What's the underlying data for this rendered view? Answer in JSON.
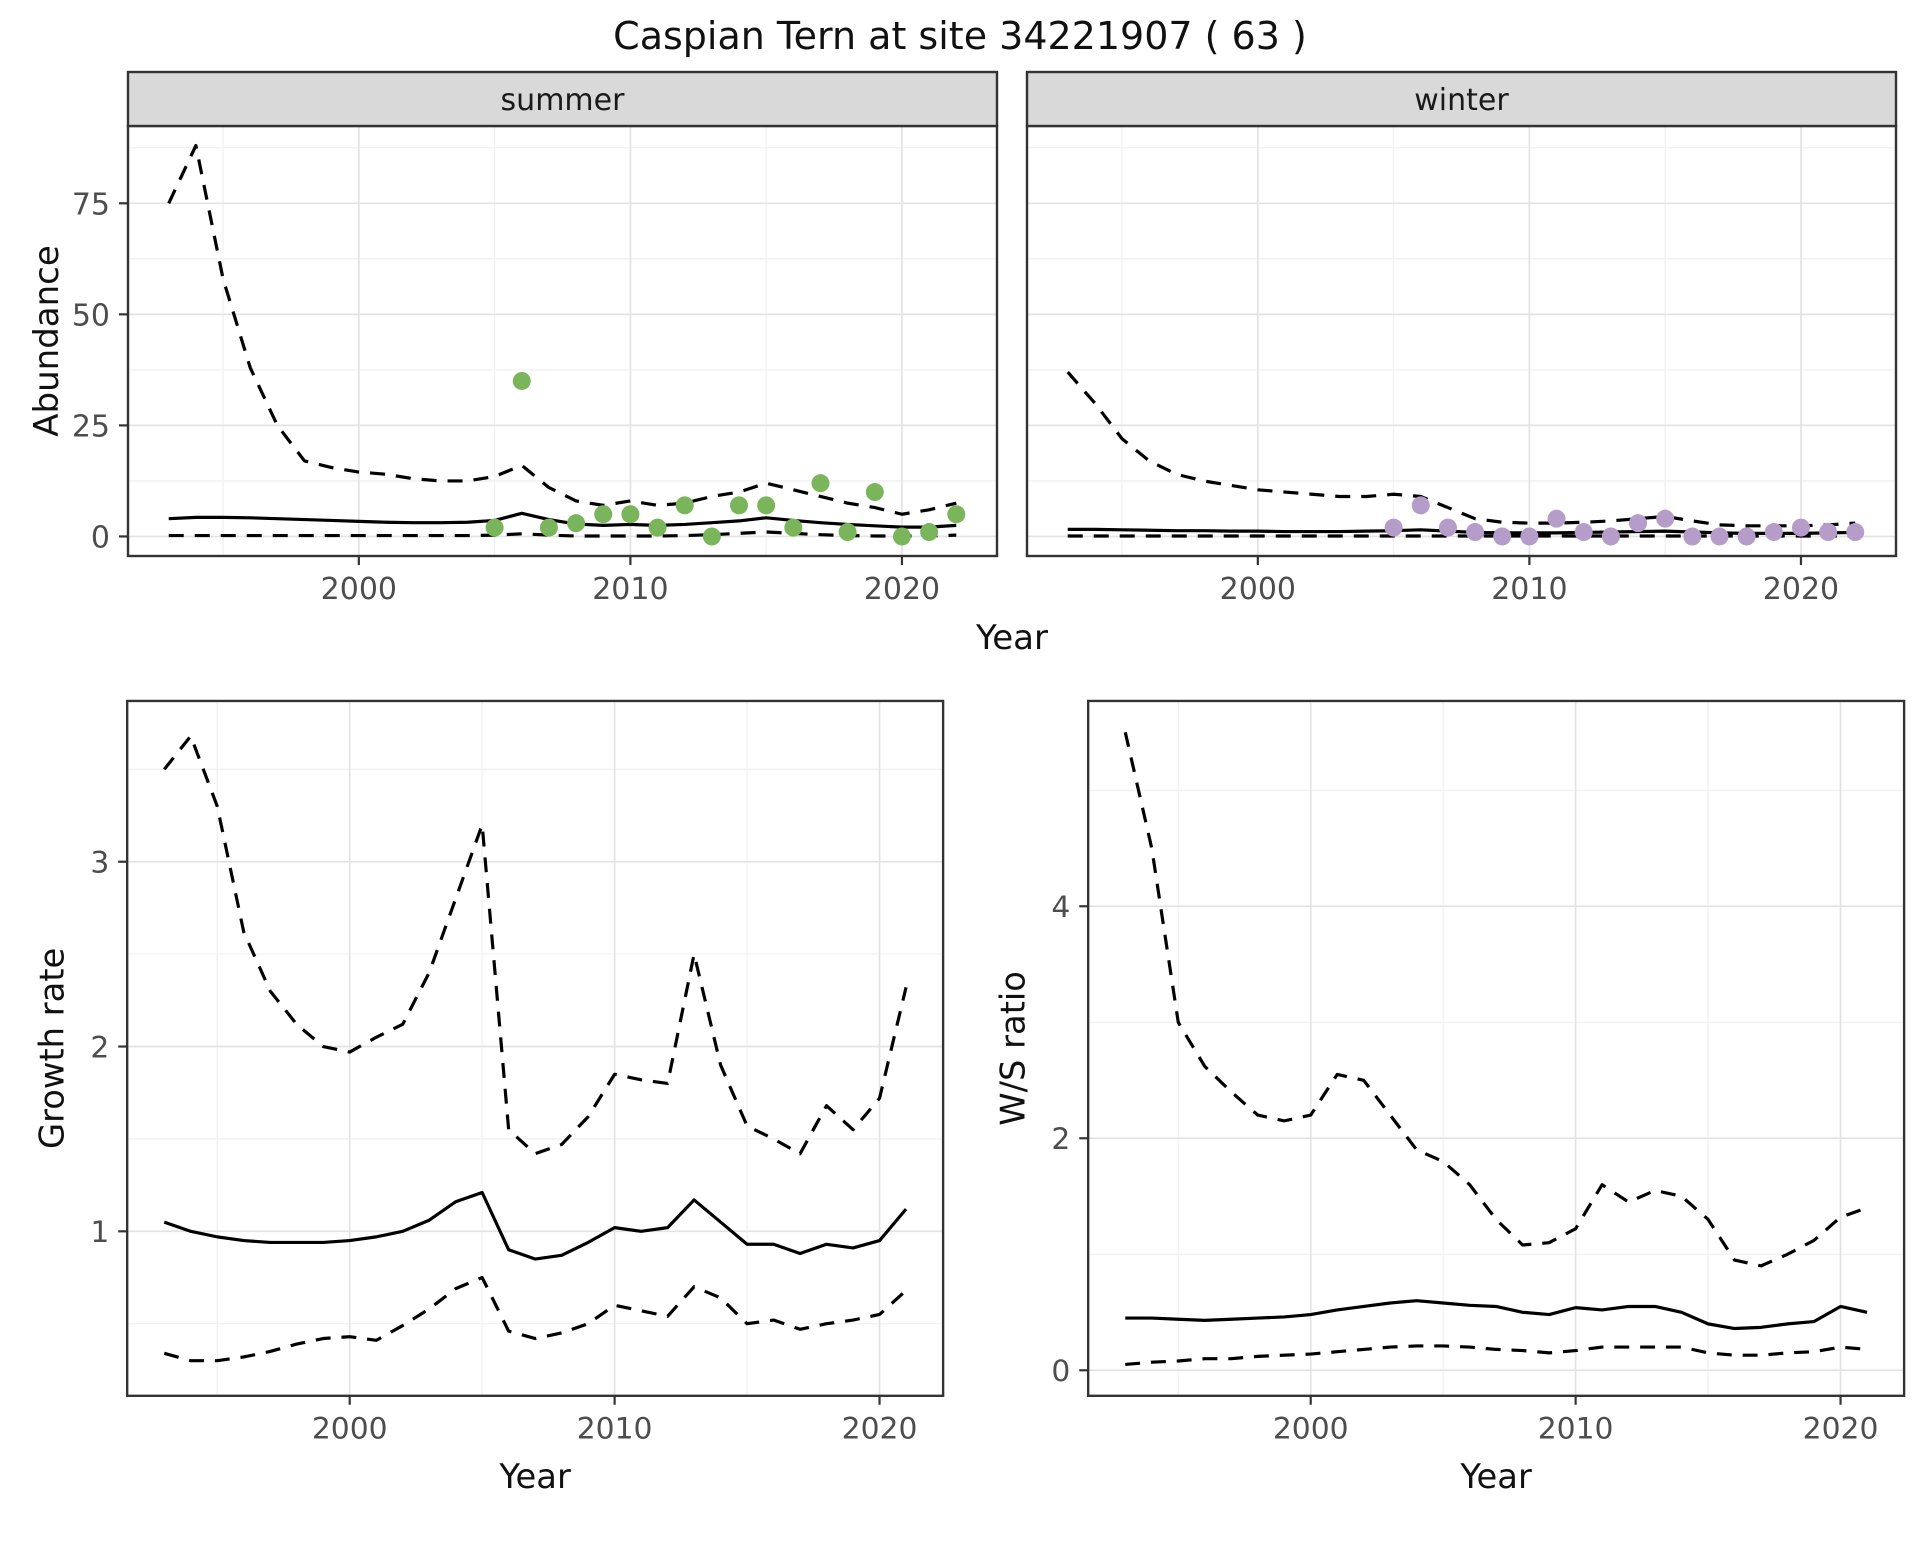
{
  "page": {
    "title": "Caspian Tern at site 34221907 ( 63 )"
  },
  "colors": {
    "summer_points": "#7ab55c",
    "winter_points": "#b59cc9",
    "line": "#000000",
    "strip_bg": "#d9d9d9",
    "panel_border": "#333333",
    "grid_major": "#e3e3e3",
    "grid_minor": "#f1f1f1",
    "tick_text": "#4d4d4d",
    "axis_title": "#111111"
  },
  "chart_data": [
    {
      "id": "abundance",
      "type": "line",
      "title": "Caspian Tern at site 34221907 ( 63 )",
      "ylabel": "Abundance",
      "xlabel": "Year",
      "legend": "none",
      "grid": true,
      "xlim": [
        1991.5,
        2023.5
      ],
      "ylim": [
        -4.4,
        92.4
      ],
      "xticks": [
        2000,
        2010,
        2020
      ],
      "xminor": [
        1995,
        2005,
        2015
      ],
      "yticks": [
        0,
        25,
        50,
        75
      ],
      "yminor": [
        12.5,
        37.5,
        62.5,
        87.5
      ],
      "x_model": [
        1993,
        1994,
        1995,
        1996,
        1997,
        1998,
        1999,
        2000,
        2001,
        2002,
        2003,
        2004,
        2005,
        2006,
        2007,
        2008,
        2009,
        2010,
        2011,
        2012,
        2013,
        2014,
        2015,
        2016,
        2017,
        2018,
        2019,
        2020,
        2021,
        2022
      ],
      "facets": [
        {
          "label": "summer",
          "point_color": "summer_points",
          "upper": [
            75,
            88,
            58,
            38,
            25,
            17,
            15.5,
            14.5,
            14,
            13,
            12.5,
            12.5,
            13.5,
            16,
            11,
            8,
            7,
            8,
            7,
            7.5,
            9,
            10,
            12,
            10.5,
            9,
            7.5,
            6.5,
            5,
            6,
            7.5
          ],
          "median": [
            4,
            4.3,
            4.3,
            4.2,
            4,
            3.8,
            3.6,
            3.4,
            3.2,
            3.1,
            3.1,
            3.2,
            3.6,
            5.2,
            3.8,
            2.8,
            2.5,
            2.7,
            2.5,
            2.7,
            3.1,
            3.5,
            4.2,
            3.6,
            3.1,
            2.7,
            2.4,
            2.1,
            2.1,
            2.5
          ],
          "lower": [
            0.2,
            0.2,
            0.2,
            0.2,
            0.2,
            0.2,
            0.2,
            0.2,
            0.2,
            0.2,
            0.2,
            0.2,
            0.3,
            0.6,
            0.3,
            0.1,
            0.1,
            0.1,
            0.1,
            0.2,
            0.4,
            0.7,
            1,
            0.7,
            0.4,
            0.2,
            0.1,
            0.1,
            0.1,
            0.3
          ],
          "obs_x": [
            2005,
            2006,
            2007,
            2008,
            2009,
            2010,
            2011,
            2012,
            2013,
            2014,
            2015,
            2016,
            2017,
            2018,
            2019,
            2020,
            2021,
            2022
          ],
          "obs_y": [
            2,
            35,
            2,
            3,
            5,
            5,
            2,
            7,
            0,
            7,
            7,
            2,
            12,
            1,
            10,
            0,
            1,
            5
          ]
        },
        {
          "label": "winter",
          "point_color": "winter_points",
          "upper": [
            37,
            30,
            22,
            17,
            14,
            12.5,
            11.5,
            10.5,
            10,
            9.5,
            9,
            9,
            9.5,
            9,
            6.5,
            4,
            3.2,
            3,
            3,
            3.2,
            3.5,
            4,
            4.5,
            3.5,
            2.6,
            2.4,
            2.4,
            2.4,
            2.6,
            3
          ],
          "median": [
            1.6,
            1.6,
            1.5,
            1.4,
            1.3,
            1.3,
            1.2,
            1.2,
            1.1,
            1.1,
            1.1,
            1.2,
            1.3,
            1.5,
            1.2,
            0.9,
            0.8,
            0.8,
            0.8,
            0.9,
            1.0,
            1.1,
            1.2,
            1.0,
            0.8,
            0.7,
            0.7,
            0.7,
            0.8,
            0.9
          ],
          "lower": [
            0.1,
            0.1,
            0.1,
            0.1,
            0.1,
            0.1,
            0.1,
            0.1,
            0.1,
            0.1,
            0.1,
            0.1,
            0.1,
            0.1,
            0.1,
            0.1,
            0.1,
            0.1,
            0.1,
            0.1,
            0.1,
            0.1,
            0.1,
            0.1,
            0.1,
            0.1,
            0.1,
            0.1,
            0.1,
            0.1
          ],
          "obs_x": [
            2005,
            2006,
            2007,
            2008,
            2009,
            2010,
            2011,
            2012,
            2013,
            2014,
            2015,
            2016,
            2017,
            2018,
            2019,
            2020,
            2021,
            2022
          ],
          "obs_y": [
            2,
            7,
            2,
            1,
            0,
            0,
            4,
            1,
            0,
            3,
            4,
            0,
            0,
            0,
            1,
            2,
            1,
            1
          ]
        }
      ]
    },
    {
      "id": "growth-rate",
      "type": "line",
      "title": "",
      "ylabel": "Growth rate",
      "xlabel": "Year",
      "legend": "none",
      "grid": true,
      "xlim": [
        1991.6,
        2022.4
      ],
      "ylim": [
        0.11,
        3.87
      ],
      "xticks": [
        2000,
        2010,
        2020
      ],
      "xminor": [
        1995,
        2005,
        2015
      ],
      "yticks": [
        1,
        2,
        3
      ],
      "yminor": [
        0.5,
        1.5,
        2.5,
        3.5
      ],
      "x_model": [
        1993,
        1994,
        1995,
        1996,
        1997,
        1998,
        1999,
        2000,
        2001,
        2002,
        2003,
        2004,
        2005,
        2006,
        2007,
        2008,
        2009,
        2010,
        2011,
        2012,
        2013,
        2014,
        2015,
        2016,
        2017,
        2018,
        2019,
        2020,
        2021
      ],
      "facets": [
        {
          "label": "",
          "upper": [
            3.5,
            3.68,
            3.3,
            2.62,
            2.3,
            2.12,
            2.0,
            1.97,
            2.05,
            2.12,
            2.4,
            2.8,
            3.2,
            1.55,
            1.42,
            1.47,
            1.62,
            1.85,
            1.82,
            1.8,
            2.5,
            1.9,
            1.57,
            1.5,
            1.42,
            1.68,
            1.55,
            1.72,
            2.32
          ],
          "median": [
            1.05,
            1.0,
            0.97,
            0.95,
            0.94,
            0.94,
            0.94,
            0.95,
            0.97,
            1.0,
            1.06,
            1.16,
            1.21,
            0.9,
            0.85,
            0.87,
            0.94,
            1.02,
            1.0,
            1.02,
            1.17,
            1.05,
            0.93,
            0.93,
            0.88,
            0.93,
            0.91,
            0.95,
            1.12
          ],
          "lower": [
            0.34,
            0.3,
            0.3,
            0.32,
            0.35,
            0.39,
            0.42,
            0.43,
            0.41,
            0.49,
            0.58,
            0.69,
            0.75,
            0.46,
            0.42,
            0.45,
            0.5,
            0.6,
            0.57,
            0.54,
            0.7,
            0.64,
            0.5,
            0.52,
            0.47,
            0.5,
            0.52,
            0.55,
            0.68
          ]
        }
      ]
    },
    {
      "id": "ws-ratio",
      "type": "line",
      "title": "",
      "ylabel": "W/S ratio",
      "xlabel": "Year",
      "legend": "none",
      "grid": true,
      "xlim": [
        1991.6,
        2022.4
      ],
      "ylim": [
        -0.22,
        5.77
      ],
      "xticks": [
        2000,
        2010,
        2020
      ],
      "xminor": [
        1995,
        2005,
        2015
      ],
      "yticks": [
        0,
        2,
        4
      ],
      "yminor": [
        1,
        3,
        5
      ],
      "x_model": [
        1993,
        1994,
        1995,
        1996,
        1997,
        1998,
        1999,
        2000,
        2001,
        2002,
        2003,
        2004,
        2005,
        2006,
        2007,
        2008,
        2009,
        2010,
        2011,
        2012,
        2013,
        2014,
        2015,
        2016,
        2017,
        2018,
        2019,
        2020,
        2021
      ],
      "facets": [
        {
          "label": "",
          "upper": [
            5.5,
            4.5,
            3.0,
            2.62,
            2.4,
            2.2,
            2.15,
            2.2,
            2.55,
            2.5,
            2.2,
            1.9,
            1.8,
            1.6,
            1.3,
            1.08,
            1.1,
            1.22,
            1.6,
            1.45,
            1.55,
            1.5,
            1.3,
            0.95,
            0.9,
            1.0,
            1.12,
            1.32,
            1.4
          ],
          "median": [
            0.45,
            0.45,
            0.44,
            0.43,
            0.44,
            0.45,
            0.46,
            0.48,
            0.52,
            0.55,
            0.58,
            0.6,
            0.58,
            0.56,
            0.55,
            0.5,
            0.48,
            0.54,
            0.52,
            0.55,
            0.55,
            0.5,
            0.4,
            0.36,
            0.37,
            0.4,
            0.42,
            0.55,
            0.5
          ],
          "lower": [
            0.05,
            0.07,
            0.08,
            0.1,
            0.1,
            0.12,
            0.13,
            0.14,
            0.16,
            0.18,
            0.2,
            0.21,
            0.21,
            0.2,
            0.18,
            0.17,
            0.15,
            0.17,
            0.2,
            0.2,
            0.2,
            0.2,
            0.15,
            0.13,
            0.13,
            0.15,
            0.16,
            0.2,
            0.18
          ]
        }
      ]
    }
  ]
}
